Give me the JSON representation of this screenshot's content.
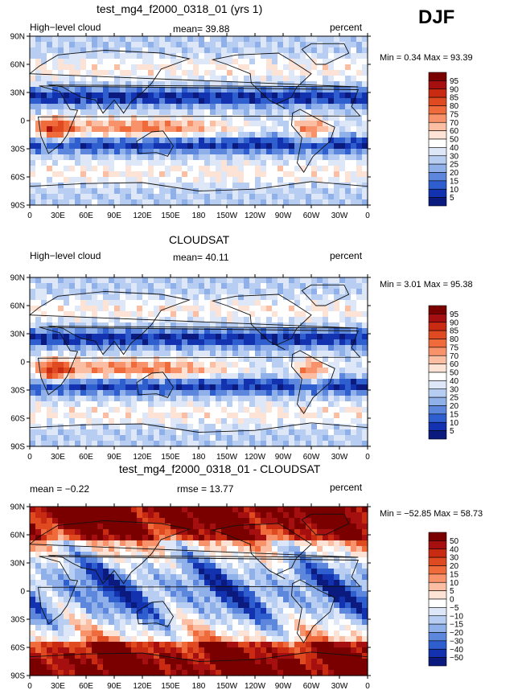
{
  "season": "DJF",
  "lat_ticks": [
    "90N",
    "60N",
    "30N",
    "0",
    "30S",
    "60S",
    "90S"
  ],
  "lon_ticks": [
    "0",
    "30E",
    "60E",
    "90E",
    "120E",
    "150E",
    "180",
    "150W",
    "120W",
    "90W",
    "60W",
    "30W",
    "0"
  ],
  "panels": [
    {
      "title": "test_mg4_f2000_0318_01 (yrs 1)",
      "left_label": "High−level cloud",
      "center_label": "mean=  39.88",
      "right_label": "percent",
      "range_label": "Min =    0.34  Max =   93.39",
      "palette": "seq",
      "levels": [
        "95",
        "90",
        "85",
        "80",
        "75",
        "70",
        "60",
        "50",
        "40",
        "30",
        "25",
        "20",
        "15",
        "10",
        "5"
      ]
    },
    {
      "title": "CLOUDSAT",
      "left_label": "High−level cloud",
      "center_label": "mean=  40.11",
      "right_label": "percent",
      "range_label": "Min =    3.01  Max =   95.38",
      "palette": "seq",
      "levels": [
        "95",
        "90",
        "85",
        "80",
        "75",
        "70",
        "60",
        "50",
        "40",
        "30",
        "25",
        "20",
        "15",
        "10",
        "5"
      ]
    },
    {
      "title": "test_mg4_f2000_0318_01 - CLOUDSAT",
      "left_label": "mean =  −0.22",
      "center_label": "rmse =   13.77",
      "right_label": "percent",
      "range_label": "Min = −52.85  Max =   58.73",
      "palette": "div",
      "levels": [
        "50",
        "40",
        "30",
        "20",
        "15",
        "10",
        "5",
        "0",
        "−5",
        "−10",
        "−15",
        "−20",
        "−30",
        "−40",
        "−50"
      ]
    }
  ],
  "colors": {
    "seq": [
      "#7a0000",
      "#a50f0f",
      "#c92a12",
      "#e04a20",
      "#ef6b3c",
      "#f7926a",
      "#fbbea3",
      "#fde2d6",
      "#ffffff",
      "#dde7f8",
      "#b7cdf1",
      "#8fb0e8",
      "#5d87dc",
      "#2f5fcf",
      "#1232b0",
      "#0a1a7e"
    ],
    "div": [
      "#7a0000",
      "#a50f0f",
      "#c92a12",
      "#e04a20",
      "#ef6b3c",
      "#f7926a",
      "#fbbea3",
      "#fde2d6",
      "#ffffff",
      "#dde7f8",
      "#b7cdf1",
      "#8fb0e8",
      "#5d87dc",
      "#2f5fcf",
      "#1232b0",
      "#0a1a7e"
    ]
  }
}
